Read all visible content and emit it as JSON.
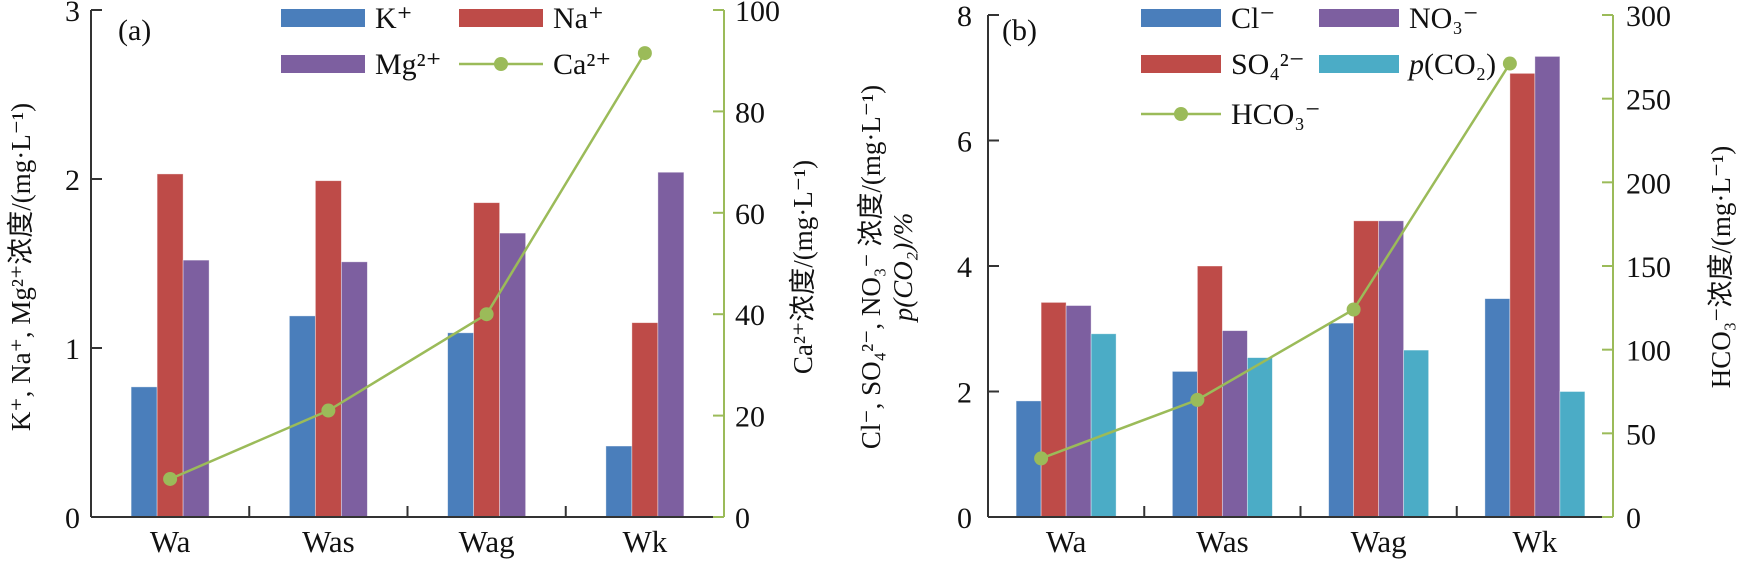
{
  "chart_data": [
    {
      "type": "bar",
      "panel_label": "(a)",
      "categories": [
        "Wa",
        "Was",
        "Wag",
        "Wk"
      ],
      "ylabel_left": "K⁺, Na⁺, Mg²⁺浓度/(mg·L⁻¹)",
      "ylabel_right": "Ca²⁺浓度/(mg·L⁻¹)",
      "ylim_left": [
        0,
        3
      ],
      "yticks_left": [
        0,
        1,
        2,
        3
      ],
      "ylim_right": [
        0,
        100
      ],
      "yticks_right": [
        0,
        20,
        40,
        60,
        80,
        100
      ],
      "legend_position": "top-center",
      "series": [
        {
          "name": "K⁺",
          "kind": "bar",
          "axis": "left",
          "color": "#4a7ebb",
          "values": [
            0.77,
            1.19,
            1.09,
            0.42
          ]
        },
        {
          "name": "Na⁺",
          "kind": "bar",
          "axis": "left",
          "color": "#be4b48",
          "values": [
            2.03,
            1.99,
            1.86,
            1.15
          ]
        },
        {
          "name": "Mg²⁺",
          "kind": "bar",
          "axis": "left",
          "color": "#7d5fa0",
          "values": [
            1.52,
            1.51,
            1.68,
            2.04
          ]
        },
        {
          "name": "Ca²⁺",
          "kind": "line",
          "axis": "right",
          "color": "#9bbb59",
          "values": [
            7.5,
            21,
            40,
            91.5
          ]
        }
      ],
      "legend_order": [
        0,
        1,
        2,
        3
      ]
    },
    {
      "type": "bar",
      "panel_label": "(b)",
      "categories": [
        "Wa",
        "Was",
        "Wag",
        "Wk"
      ],
      "ylabel_left_line1": "Cl⁻, SO₄²⁻, NO₃⁻ 浓度/(mg·L⁻¹)",
      "ylabel_left_line2": "p(CO₂)/%",
      "ylabel_right": "HCO₃⁻浓度/(mg·L⁻¹)",
      "ylim_left": [
        0,
        8
      ],
      "yticks_left": [
        0,
        2,
        4,
        6,
        8
      ],
      "ylim_right": [
        0,
        300
      ],
      "yticks_right": [
        0,
        50,
        100,
        150,
        200,
        250,
        300
      ],
      "legend_position": "top-center",
      "series": [
        {
          "name": "Cl⁻",
          "kind": "bar",
          "axis": "left",
          "color": "#4a7ebb",
          "values": [
            1.85,
            2.32,
            3.09,
            3.48
          ]
        },
        {
          "name": "SO₄²⁻",
          "kind": "bar",
          "axis": "left",
          "color": "#be4b48",
          "values": [
            3.42,
            4.0,
            4.72,
            7.07
          ]
        },
        {
          "name": "NO₃⁻",
          "kind": "bar",
          "axis": "left",
          "color": "#7d5fa0",
          "values": [
            3.37,
            2.97,
            4.72,
            7.34
          ]
        },
        {
          "name": "p(CO₂)",
          "kind": "bar",
          "axis": "left",
          "color": "#4bacc6",
          "values": [
            2.92,
            2.54,
            2.66,
            2.0
          ]
        },
        {
          "name": "HCO₃⁻",
          "kind": "line",
          "axis": "right",
          "color": "#9bbb59",
          "values": [
            35,
            70,
            124,
            271
          ]
        }
      ],
      "legend_order": [
        0,
        2,
        1,
        3,
        4
      ]
    }
  ]
}
